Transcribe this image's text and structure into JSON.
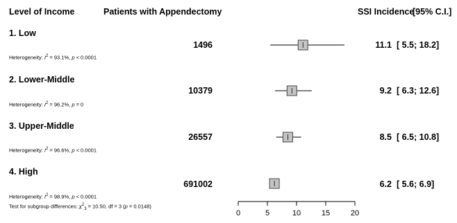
{
  "headers": {
    "level": "Level of Income",
    "patients": "Patients with Appendectomy",
    "incidence": "SSI Incidence",
    "ci": "[95% C.I.]"
  },
  "chart_data": {
    "type": "forest",
    "xlim": [
      0,
      20
    ],
    "xticks": [
      0,
      5,
      10,
      15,
      20
    ],
    "groups": [
      {
        "label": "1. Low",
        "patients": "1496",
        "estimate": 11.1,
        "lower": 5.5,
        "upper": 18.2,
        "estimate_text": "11.1",
        "ci_text": "[ 5.5; 18.2]",
        "heterogeneity": {
          "prefix": "Heterogeneity: ",
          "i2": "93.1%",
          "p": "< 0.0001"
        }
      },
      {
        "label": "2. Lower-Middle",
        "patients": "10379",
        "estimate": 9.2,
        "lower": 6.3,
        "upper": 12.6,
        "estimate_text": "9.2",
        "ci_text": "[ 6.3; 12.6]",
        "heterogeneity": {
          "prefix": "Heterogeneity: ",
          "i2": "96.2%",
          "p": "= 0"
        }
      },
      {
        "label": "3. Upper-Middle",
        "patients": "26557",
        "estimate": 8.5,
        "lower": 6.5,
        "upper": 10.8,
        "estimate_text": "8.5",
        "ci_text": "[ 6.5; 10.8]",
        "heterogeneity": {
          "prefix": "Heterogeneity: ",
          "i2": "96.6%",
          "p": "< 0.0001"
        }
      },
      {
        "label": "4. High",
        "patients": "691002",
        "estimate": 6.2,
        "lower": 5.6,
        "upper": 6.9,
        "estimate_text": "6.2",
        "ci_text": "[ 5.6; 6.9]",
        "heterogeneity": {
          "prefix": "Heterogeneity: ",
          "i2": "98.9%",
          "p": "< 0.0001"
        }
      }
    ],
    "subgroup_test": {
      "prefix": "Test for subgroup differences: ",
      "chi2": "10.50",
      "df": "3",
      "p": "0.0148"
    }
  }
}
